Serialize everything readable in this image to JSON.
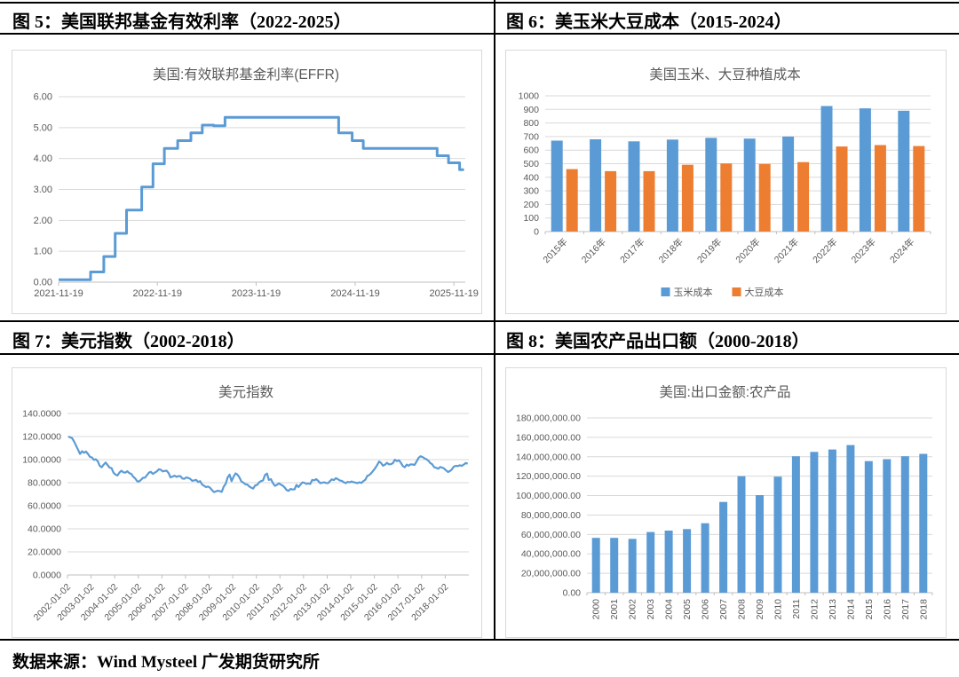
{
  "page": {
    "footer_source": "数据来源：Wind Mysteel 广发期货研究所"
  },
  "panels": [
    {
      "title": "图 5：美国联邦基金有效利率（2022-2025）"
    },
    {
      "title": "图 6：美玉米大豆成本（2015-2024）"
    },
    {
      "title": "图 7：美元指数（2002-2018）"
    },
    {
      "title": "图 8：美国农产品出口额（2000-2018）"
    }
  ],
  "colors": {
    "blue": "#5B9BD5",
    "orange": "#ED7D31",
    "grid": "#D9D9D9",
    "axis": "#BFBFBF",
    "tick": "#595959",
    "title": "#595959",
    "rule": "#000000",
    "box_border": "#D9D9D9"
  },
  "chart_data": [
    {
      "type": "line",
      "subtype": "step",
      "title": "美国:有效联邦基金利率(EFFR)",
      "color": "#5B9BD5",
      "ylabel": "",
      "xlabel": "",
      "ylim": [
        0,
        6
      ],
      "y_step": 1,
      "y_format": "2dp",
      "x_range": [
        "2021-11-19",
        "2025-12-31"
      ],
      "x_ticks": [
        "2021-11-19",
        "2022-11-19",
        "2023-11-19",
        "2024-11-19",
        "2025-11-19"
      ],
      "points": [
        [
          "2021-11-19",
          0.08
        ],
        [
          "2022-03-17",
          0.33
        ],
        [
          "2022-05-05",
          0.83
        ],
        [
          "2022-06-16",
          1.58
        ],
        [
          "2022-07-28",
          2.33
        ],
        [
          "2022-09-22",
          3.08
        ],
        [
          "2022-11-03",
          3.83
        ],
        [
          "2022-12-15",
          4.33
        ],
        [
          "2023-02-02",
          4.58
        ],
        [
          "2023-03-23",
          4.83
        ],
        [
          "2023-05-04",
          5.08
        ],
        [
          "2023-06-15",
          5.06
        ],
        [
          "2023-07-27",
          5.33
        ],
        [
          "2024-09-19",
          4.83
        ],
        [
          "2024-11-08",
          4.58
        ],
        [
          "2024-12-19",
          4.33
        ],
        [
          "2025-09-18",
          4.09
        ],
        [
          "2025-10-30",
          3.86
        ],
        [
          "2025-12-10",
          3.64
        ],
        [
          "2025-12-26",
          3.64
        ]
      ]
    },
    {
      "type": "bar",
      "title": "美国玉米、大豆种植成本",
      "ylim": [
        0,
        1000
      ],
      "y_step": 100,
      "y_format": "int",
      "legend_position": "bottom",
      "categories": [
        "2015年",
        "2016年",
        "2017年",
        "2018年",
        "2019年",
        "2020年",
        "2021年",
        "2022年",
        "2023年",
        "2024年"
      ],
      "series": [
        {
          "name": "玉米成本",
          "color": "#5B9BD5",
          "values": [
            670,
            680,
            665,
            678,
            690,
            685,
            700,
            925,
            908,
            890
          ]
        },
        {
          "name": "大豆成本",
          "color": "#ED7D31",
          "values": [
            460,
            445,
            445,
            492,
            502,
            498,
            512,
            627,
            637,
            630
          ]
        }
      ]
    },
    {
      "type": "line",
      "title": "美元指数",
      "color": "#5B9BD5",
      "ylim": [
        0,
        140
      ],
      "y_step": 20,
      "y_format": "4dp",
      "x_range": [
        "2002-01-02",
        "2019-01-02"
      ],
      "x_ticks": [
        "2002-01-02",
        "2003-01-02",
        "2004-01-02",
        "2005-01-02",
        "2006-01-02",
        "2007-01-02",
        "2008-01-02",
        "2009-01-02",
        "2010-01-02",
        "2011-01-02",
        "2012-01-02",
        "2013-01-02",
        "2014-01-02",
        "2015-01-02",
        "2016-01-02",
        "2017-01-02",
        "2018-01-02"
      ],
      "x_monthly_start": "2002-01",
      "y": [
        120.0,
        119.2,
        118.6,
        115.6,
        112.1,
        108.6,
        104.9,
        107.2,
        105.9,
        107.0,
        104.9,
        102.4,
        101.9,
        99.8,
        100.3,
        98.6,
        94.6,
        93.4,
        95.6,
        97.5,
        95.2,
        93.0,
        92.6,
        88.7,
        87.0,
        86.2,
        88.8,
        90.4,
        89.0,
        88.8,
        89.9,
        88.3,
        87.6,
        85.2,
        83.6,
        81.2,
        81.1,
        82.6,
        84.2,
        84.4,
        86.5,
        88.7,
        89.4,
        87.6,
        88.8,
        89.8,
        91.6,
        91.2,
        89.8,
        90.2,
        90.4,
        88.3,
        84.6,
        85.3,
        86.1,
        85.1,
        85.7,
        85.6,
        83.6,
        83.4,
        84.6,
        84.1,
        83.4,
        81.6,
        82.0,
        82.5,
        80.6,
        81.4,
        78.4,
        77.4,
        76.2,
        76.7,
        75.7,
        73.6,
        71.9,
        72.4,
        73.1,
        72.6,
        72.1,
        76.6,
        79.1,
        84.6,
        87.0,
        81.3,
        85.2,
        88.1,
        87.0,
        84.6,
        81.1,
        80.1,
        78.6,
        78.4,
        76.7,
        75.6,
        74.9,
        77.6,
        78.1,
        80.4,
        81.4,
        81.9,
        86.6,
        87.9,
        82.4,
        83.1,
        79.6,
        77.3,
        78.1,
        79.5,
        78.3,
        77.4,
        75.9,
        73.6,
        72.9,
        74.6,
        74.1,
        74.2,
        78.1,
        76.2,
        78.3,
        80.2,
        79.9,
        78.9,
        79.4,
        78.9,
        82.4,
        82.1,
        83.1,
        81.6,
        79.6,
        79.9,
        80.3,
        79.8,
        79.6,
        81.4,
        82.9,
        82.2,
        83.9,
        83.1,
        81.9,
        81.6,
        80.4,
        79.6,
        80.7,
        80.3,
        81.1,
        80.4,
        80.1,
        79.6,
        80.4,
        79.8,
        81.3,
        82.6,
        85.9,
        86.6,
        88.3,
        90.3,
        92.6,
        95.3,
        98.4,
        97.1,
        94.7,
        95.6,
        97.2,
        95.9,
        96.1,
        96.9,
        99.9,
        98.7,
        99.5,
        97.3,
        94.6,
        93.4,
        95.7,
        94.7,
        95.9,
        95.8,
        95.4,
        98.3,
        101.5,
        102.9,
        102.2,
        101.1,
        100.4,
        99.1,
        97.1,
        95.9,
        93.4,
        92.9,
        92.1,
        93.6,
        93.1,
        92.3,
        90.6,
        89.2,
        90.1,
        91.6,
        93.9,
        94.6,
        94.4,
        95.1,
        94.6,
        95.6,
        97.1,
        96.4
      ]
    },
    {
      "type": "bar",
      "title": "美国:出口金额:农产品",
      "ylim": [
        0,
        180000000
      ],
      "y_step": 20000000,
      "y_format": "comma2",
      "categories": [
        "2000",
        "2001",
        "2002",
        "2003",
        "2004",
        "2005",
        "2006",
        "2007",
        "2008",
        "2009",
        "2010",
        "2011",
        "2012",
        "2013",
        "2014",
        "2015",
        "2016",
        "2017",
        "2018"
      ],
      "series": [
        {
          "name": "美国:出口金额:农产品",
          "color": "#5B9BD5",
          "values": [
            56500000,
            56500000,
            55500000,
            62500000,
            64000000,
            65500000,
            71500000,
            93500000,
            120000000,
            100500000,
            119500000,
            140500000,
            145000000,
            147500000,
            152000000,
            135500000,
            137500000,
            140500000,
            143000000
          ]
        }
      ]
    }
  ]
}
